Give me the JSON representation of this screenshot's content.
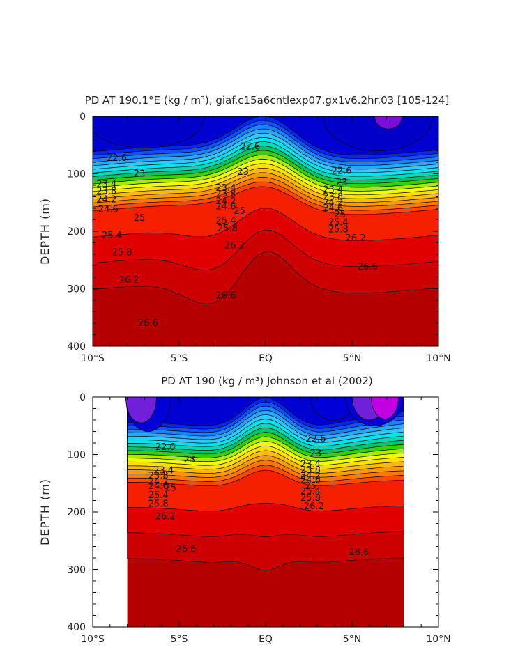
{
  "chart_data": [
    {
      "type": "contour",
      "title": "PD AT 190.1°E (kg / m³), giaf.c15a6cntlexp07.gx1v6.2hr.03 [105-124]",
      "ylabel": "DEPTH (m)",
      "xlabel": "",
      "x_ticks": [
        "10°S",
        "5°S",
        "EQ",
        "5°N",
        "10°N"
      ],
      "y_ticks": [
        "0",
        "100",
        "200",
        "300",
        "400"
      ],
      "xlim": [
        -10,
        10
      ],
      "ylim": [
        400,
        0
      ],
      "data_extent": [
        -10,
        10
      ],
      "contour_labels": [
        {
          "text": "22.6",
          "lat": -8.6,
          "depth": 73
        },
        {
          "text": "22.6",
          "lat": -0.9,
          "depth": 53
        },
        {
          "text": "22.6",
          "lat": 4.4,
          "depth": 95
        },
        {
          "text": "23",
          "lat": -7.3,
          "depth": 100
        },
        {
          "text": "23",
          "lat": -1.3,
          "depth": 97
        },
        {
          "text": "23",
          "lat": 4.4,
          "depth": 115
        },
        {
          "text": "23.4",
          "lat": -9.2,
          "depth": 118
        },
        {
          "text": "23.4",
          "lat": -2.3,
          "depth": 125
        },
        {
          "text": "23.4",
          "lat": 3.9,
          "depth": 128
        },
        {
          "text": "23.8",
          "lat": -9.2,
          "depth": 130
        },
        {
          "text": "23.8",
          "lat": -2.3,
          "depth": 135
        },
        {
          "text": "23.8",
          "lat": 3.9,
          "depth": 140
        },
        {
          "text": "24.2",
          "lat": -9.2,
          "depth": 145
        },
        {
          "text": "24.2",
          "lat": -2.3,
          "depth": 148
        },
        {
          "text": "24.2",
          "lat": 3.9,
          "depth": 150
        },
        {
          "text": "24.6",
          "lat": -9.1,
          "depth": 162
        },
        {
          "text": "24.6",
          "lat": -2.3,
          "depth": 157
        },
        {
          "text": "24.6",
          "lat": 3.9,
          "depth": 160
        },
        {
          "text": "25",
          "lat": -7.3,
          "depth": 177
        },
        {
          "text": "25",
          "lat": -1.5,
          "depth": 165
        },
        {
          "text": "25",
          "lat": 4.3,
          "depth": 171
        },
        {
          "text": "25.4",
          "lat": -8.9,
          "depth": 207
        },
        {
          "text": "25.4",
          "lat": -2.3,
          "depth": 182
        },
        {
          "text": "25.4",
          "lat": 4.2,
          "depth": 185
        },
        {
          "text": "25.8",
          "lat": -8.3,
          "depth": 237
        },
        {
          "text": "25.8",
          "lat": -2.2,
          "depth": 195
        },
        {
          "text": "25.8",
          "lat": 4.2,
          "depth": 197
        },
        {
          "text": "26.2",
          "lat": -7.9,
          "depth": 285
        },
        {
          "text": "26.2",
          "lat": -1.8,
          "depth": 225
        },
        {
          "text": "26.2",
          "lat": 5.2,
          "depth": 212
        },
        {
          "text": "26.6",
          "lat": -6.8,
          "depth": 360
        },
        {
          "text": "26.6",
          "lat": -2.3,
          "depth": 312
        },
        {
          "text": "26.6",
          "lat": 5.9,
          "depth": 262
        }
      ]
    },
    {
      "type": "contour",
      "title": "PD AT 190 (kg / m³) Johnson et al (2002)",
      "ylabel": "DEPTH (m)",
      "xlabel": "",
      "x_ticks": [
        "10°S",
        "5°S",
        "EQ",
        "5°N",
        "10°N"
      ],
      "y_ticks": [
        "0",
        "100",
        "200",
        "300",
        "400"
      ],
      "xlim": [
        -10,
        10
      ],
      "ylim": [
        400,
        0
      ],
      "data_extent": [
        -8,
        8
      ],
      "contour_labels": [
        {
          "text": "22.6",
          "lat": -5.8,
          "depth": 87
        },
        {
          "text": "22.6",
          "lat": 2.9,
          "depth": 73
        },
        {
          "text": "23",
          "lat": -4.4,
          "depth": 109
        },
        {
          "text": "23",
          "lat": 2.9,
          "depth": 98
        },
        {
          "text": "23.4",
          "lat": -5.9,
          "depth": 128
        },
        {
          "text": "23.4",
          "lat": 2.6,
          "depth": 117
        },
        {
          "text": "23.8",
          "lat": -6.2,
          "depth": 137
        },
        {
          "text": "23.8",
          "lat": 2.6,
          "depth": 127
        },
        {
          "text": "24.2",
          "lat": -6.2,
          "depth": 147
        },
        {
          "text": "24.2",
          "lat": 2.6,
          "depth": 137
        },
        {
          "text": "24.6",
          "lat": -6.2,
          "depth": 155
        },
        {
          "text": "24.6",
          "lat": 2.6,
          "depth": 145
        },
        {
          "text": "25",
          "lat": -5.5,
          "depth": 158
        },
        {
          "text": "25",
          "lat": 2.6,
          "depth": 155
        },
        {
          "text": "25.4",
          "lat": -6.2,
          "depth": 171
        },
        {
          "text": "25.4",
          "lat": 2.6,
          "depth": 164
        },
        {
          "text": "25.8",
          "lat": -6.2,
          "depth": 186
        },
        {
          "text": "25.8",
          "lat": 2.6,
          "depth": 176
        },
        {
          "text": "26.2",
          "lat": -5.8,
          "depth": 208
        },
        {
          "text": "26.2",
          "lat": 2.8,
          "depth": 190
        },
        {
          "text": "26.6",
          "lat": -4.6,
          "depth": 265
        },
        {
          "text": "26.6",
          "lat": 5.4,
          "depth": 270
        }
      ]
    }
  ]
}
